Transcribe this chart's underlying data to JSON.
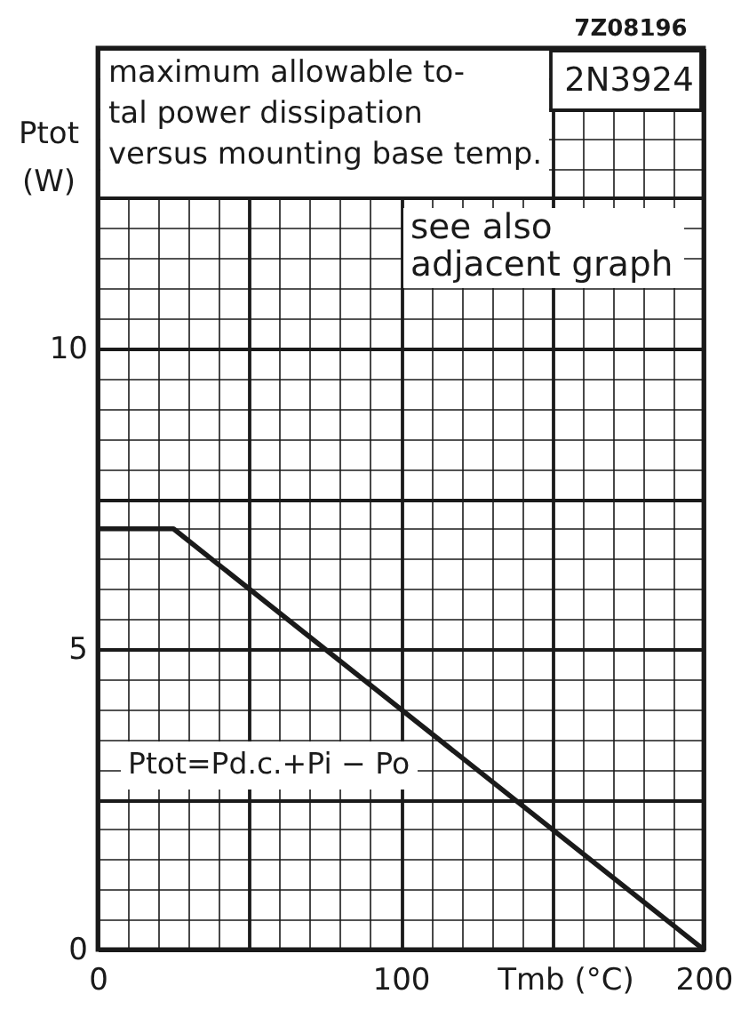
{
  "chart_data": {
    "type": "line",
    "title": "maximum allowable to-\ntal power dissipation\nversus mounting base temp.",
    "xlabel": "Tmb (°C)",
    "ylabel": "Ptot\n(W)",
    "x": [
      0,
      25,
      200
    ],
    "series": [
      {
        "color": "#1a1a1a",
        "values": [
          7,
          7,
          0
        ]
      }
    ],
    "xlim": [
      0,
      200
    ],
    "ylim": [
      0,
      15
    ],
    "xticks": [
      0,
      {
        "value": 10,
        "label": null
      },
      {
        "value": 20,
        "label": null
      },
      {
        "value": 30,
        "label": null
      },
      {
        "value": 40,
        "label": null
      },
      {
        "value": 50,
        "label": null
      },
      {
        "value": 60,
        "label": null
      },
      {
        "value": 70,
        "label": null
      },
      {
        "value": 80,
        "label": null
      },
      {
        "value": 90,
        "label": null
      },
      100,
      {
        "value": 110,
        "label": null
      },
      {
        "value": 120,
        "label": null
      },
      {
        "value": 130,
        "label": null
      },
      {
        "value": 140,
        "label": null
      },
      {
        "value": 150,
        "label": null
      },
      {
        "value": 160,
        "label": null
      },
      {
        "value": 170,
        "label": null
      },
      {
        "value": 180,
        "label": null
      },
      {
        "value": 190,
        "label": null
      },
      200
    ],
    "yticks": [
      0,
      {
        "value": 0.5,
        "label": null
      },
      {
        "value": 1,
        "label": null
      },
      {
        "value": 1.5,
        "label": null
      },
      {
        "value": 2,
        "label": null
      },
      {
        "value": 2.5,
        "label": null
      },
      {
        "value": 3,
        "label": null
      },
      {
        "value": 3.5,
        "label": null
      },
      {
        "value": 4,
        "label": null
      },
      {
        "value": 4.5,
        "label": null
      },
      5,
      {
        "value": 5.5,
        "label": null
      },
      {
        "value": 6,
        "label": null
      },
      {
        "value": 6.5,
        "label": null
      },
      {
        "value": 7,
        "label": null
      },
      {
        "value": 7.5,
        "label": null
      },
      {
        "value": 8,
        "label": null
      },
      {
        "value": 8.5,
        "label": null
      },
      {
        "value": 9,
        "label": null
      },
      {
        "value": 9.5,
        "label": null
      },
      10,
      {
        "value": 10.5,
        "label": null
      },
      {
        "value": 11,
        "label": null
      },
      {
        "value": 11.5,
        "label": null
      },
      {
        "value": 12,
        "label": null
      },
      {
        "value": 12.5,
        "label": null
      },
      {
        "value": 13,
        "label": null
      },
      {
        "value": 13.5,
        "label": null
      },
      {
        "value": 14,
        "label": null
      },
      {
        "value": 14.5,
        "label": null
      },
      {
        "value": 15,
        "label": null
      }
    ],
    "grid": true,
    "line_style": "solid",
    "annotations": [
      "7Z08196",
      "2N3924",
      "see also\nadjacent graph",
      "Ptot=Pd.c.+Pi − Po"
    ]
  }
}
